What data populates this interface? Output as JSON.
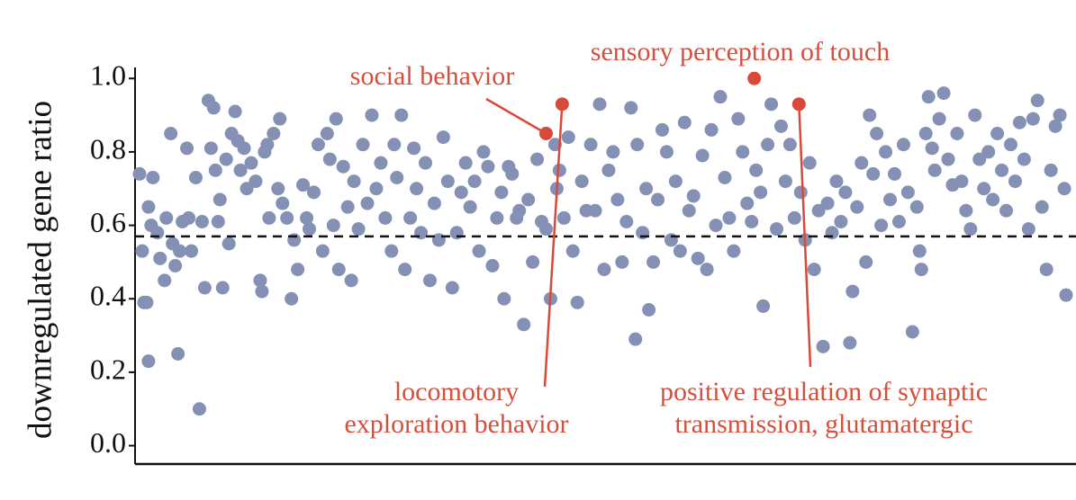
{
  "chart_data": {
    "type": "scatter",
    "y_label": "downregulated gene ratio",
    "xlim": [
      0,
      1045
    ],
    "ylim": [
      -0.05,
      1.03
    ],
    "yticks": [
      {
        "value": 0,
        "label": "0.0"
      },
      0.2,
      0.4,
      0.6,
      0.8,
      {
        "value": 1,
        "label": "1.0"
      }
    ],
    "color": "#8491b4",
    "highlight_color": "#d9493a",
    "hline": 0.57,
    "x": [
      5,
      8,
      10,
      13,
      15,
      20,
      15,
      18,
      25,
      28,
      33,
      35,
      40,
      42,
      45,
      48,
      50,
      53,
      58,
      60,
      63,
      68,
      72,
      75,
      78,
      82,
      85,
      88,
      90,
      93,
      95,
      98,
      102,
      105,
      108,
      112,
      115,
      118,
      122,
      125,
      130,
      135,
      140,
      142,
      145,
      148,
      150,
      155,
      160,
      162,
      165,
      170,
      175,
      178,
      182,
      188,
      192,
      195,
      200,
      205,
      210,
      215,
      218,
      222,
      225,
      228,
      233,
      238,
      242,
      245,
      250,
      255,
      260,
      265,
      270,
      275,
      280,
      287,
      290,
      293,
      298,
      302,
      308,
      312,
      315,
      320,
      325,
      330,
      335,
      340,
      345,
      350,
      355,
      360,
      365,
      370,
      375,
      380,
      385,
      390,
      395,
      400,
      405,
      410,
      413,
      418,
      422,
      427,
      430,
      435,
      440,
      445,
      450,
      455,
      460,
      465,
      470,
      472,
      475,
      480,
      485,
      490,
      495,
      500,
      505,
      510,
      515,
      520,
      525,
      530,
      535,
      540,
      545,
      550,
      555,
      560,
      562,
      568,
      572,
      575,
      580,
      585,
      590,
      595,
      600,
      605,
      610,
      615,
      620,
      625,
      630,
      635,
      640,
      645,
      650,
      655,
      660,
      665,
      670,
      675,
      680,
      685,
      690,
      695,
      700,
      703,
      708,
      712,
      718,
      723,
      728,
      733,
      738,
      745,
      750,
      755,
      760,
      765,
      770,
      775,
      780,
      785,
      790,
      795,
      800,
      803,
      808,
      813,
      818,
      822,
      826,
      830,
      835,
      840,
      845,
      850,
      855,
      860,
      865,
      870,
      875,
      878,
      880,
      885,
      888,
      892,
      895,
      900,
      905,
      910,
      915,
      920,
      925,
      930,
      935,
      940,
      945,
      950,
      955,
      960,
      965,
      970,
      975,
      980,
      985,
      990,
      995,
      1000,
      1005,
      1010,
      1015,
      1020,
      1025,
      1030,
      1035,
      1040,
      1042
    ],
    "y": [
      0.74,
      0.53,
      0.39,
      0.39,
      0.23,
      0.73,
      0.65,
      0.6,
      0.58,
      0.51,
      0.45,
      0.62,
      0.85,
      0.55,
      0.49,
      0.25,
      0.53,
      0.61,
      0.81,
      0.62,
      0.53,
      0.73,
      0.1,
      0.61,
      0.43,
      0.94,
      0.81,
      0.92,
      0.75,
      0.61,
      0.67,
      0.43,
      0.78,
      0.55,
      0.85,
      0.91,
      0.83,
      0.75,
      0.81,
      0.7,
      0.77,
      0.72,
      0.45,
      0.42,
      0.8,
      0.82,
      0.62,
      0.85,
      0.7,
      0.89,
      0.66,
      0.62,
      0.4,
      0.56,
      0.48,
      0.71,
      0.62,
      0.59,
      0.69,
      0.82,
      0.53,
      0.85,
      0.78,
      0.6,
      0.89,
      0.48,
      0.76,
      0.65,
      0.45,
      0.72,
      0.59,
      0.82,
      0.66,
      0.9,
      0.7,
      0.77,
      0.62,
      0.53,
      0.82,
      0.73,
      0.9,
      0.48,
      0.62,
      0.81,
      0.7,
      0.58,
      0.77,
      0.45,
      0.66,
      0.56,
      0.84,
      0.72,
      0.43,
      0.58,
      0.69,
      0.77,
      0.65,
      0.72,
      0.53,
      0.8,
      0.76,
      0.49,
      0.62,
      0.69,
      0.4,
      0.76,
      0.74,
      0.62,
      0.64,
      0.33,
      0.67,
      0.5,
      0.78,
      0.61,
      0.59,
      0.4,
      0.82,
      0.7,
      0.75,
      0.62,
      0.84,
      0.53,
      0.39,
      0.72,
      0.64,
      0.82,
      0.64,
      0.93,
      0.48,
      0.75,
      0.8,
      0.67,
      0.5,
      0.61,
      0.92,
      0.29,
      0.82,
      0.58,
      0.7,
      0.37,
      0.5,
      0.67,
      0.86,
      0.8,
      0.56,
      0.72,
      0.53,
      0.88,
      0.64,
      0.68,
      0.51,
      0.79,
      0.48,
      0.86,
      0.6,
      0.95,
      0.73,
      0.62,
      0.53,
      0.89,
      0.8,
      0.66,
      0.61,
      0.75,
      0.69,
      0.38,
      0.82,
      0.93,
      0.59,
      0.87,
      0.72,
      0.82,
      0.62,
      0.69,
      0.56,
      0.77,
      0.48,
      0.64,
      0.27,
      0.66,
      0.58,
      0.72,
      0.61,
      0.69,
      0.28,
      0.42,
      0.65,
      0.77,
      0.5,
      0.9,
      0.74,
      0.85,
      0.6,
      0.8,
      0.67,
      0.74,
      0.61,
      0.82,
      0.69,
      0.31,
      0.65,
      0.53,
      0.48,
      0.85,
      0.95,
      0.81,
      0.75,
      0.89,
      0.96,
      0.78,
      0.71,
      0.85,
      0.72,
      0.64,
      0.59,
      0.9,
      0.78,
      0.7,
      0.8,
      0.67,
      0.85,
      0.75,
      0.64,
      0.82,
      0.72,
      0.88,
      0.78,
      0.59,
      0.89,
      0.94,
      0.65,
      0.48,
      0.75,
      0.87,
      0.9,
      0.7,
      0.41
    ],
    "highlights": [
      {
        "label_lines": [
          "social behavior"
        ],
        "x": 460,
        "y": 0.85
      },
      {
        "label_lines": [
          "locomotory",
          "exploration behavior"
        ],
        "x": 478,
        "y": 0.93
      },
      {
        "label_lines": [
          "sensory perception of touch"
        ],
        "x": 693,
        "y": 1.0
      },
      {
        "label_lines": [
          "positive regulation of synaptic",
          "transmission, glutamatergic"
        ],
        "x": 743,
        "y": 0.93
      }
    ]
  }
}
